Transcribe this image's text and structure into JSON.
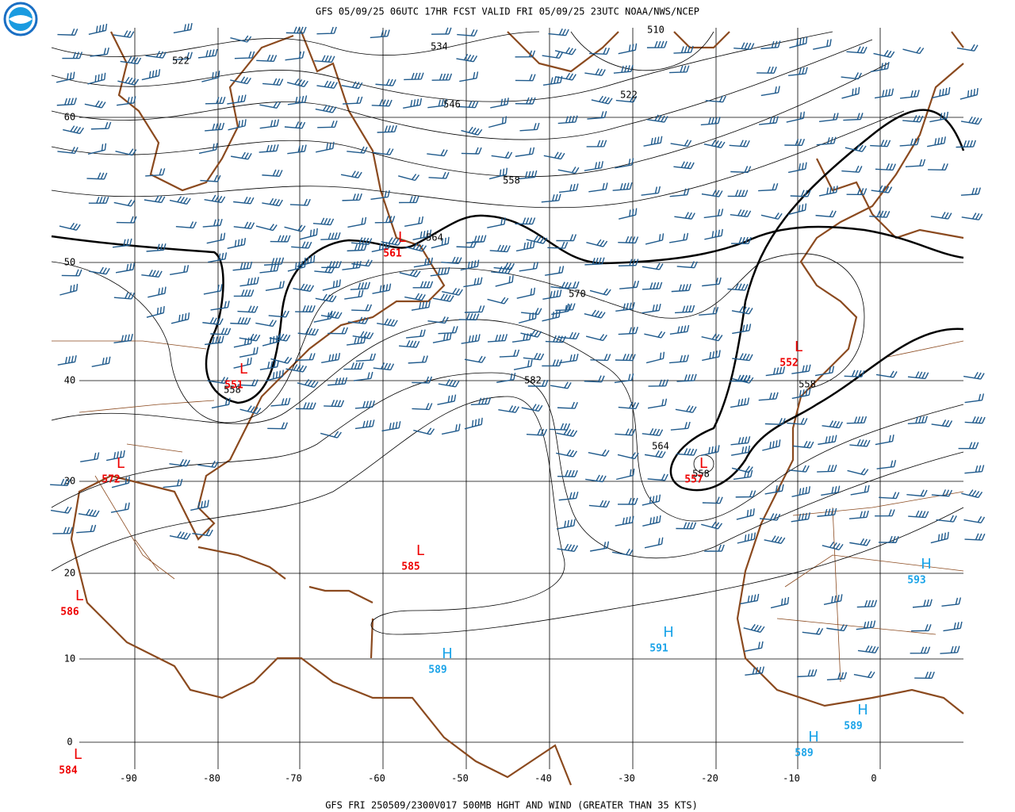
{
  "header": {
    "title": "GFS 05/09/25 06UTC 17HR FCST VALID FRI 05/09/25 23UTC NOAA/NWS/NCEP"
  },
  "footer": {
    "caption": "GFS FRI 250509/2300V017 500MB HGHT AND WIND (GREATER THAN 35 KTS)"
  },
  "latitudes": [
    60,
    50,
    40,
    30,
    20,
    10,
    0
  ],
  "longitudes": [
    -90,
    -80,
    -70,
    -60,
    -50,
    -40,
    -30,
    -20,
    -10,
    0
  ],
  "contour_labels": [
    522,
    534,
    510,
    546,
    522,
    558,
    564,
    570,
    582,
    564,
    558,
    558,
    558
  ],
  "centers": [
    {
      "type": "L",
      "value": 561
    },
    {
      "type": "L",
      "value": 551
    },
    {
      "type": "L",
      "value": 572
    },
    {
      "type": "L",
      "value": 585
    },
    {
      "type": "L",
      "value": 586
    },
    {
      "type": "L",
      "value": 584
    },
    {
      "type": "L",
      "value": 552
    },
    {
      "type": "L",
      "value": 557
    },
    {
      "type": "H",
      "value": 589
    },
    {
      "type": "H",
      "value": 591
    },
    {
      "type": "H",
      "value": 593
    },
    {
      "type": "H",
      "value": 589
    },
    {
      "type": "H",
      "value": 589
    }
  ]
}
